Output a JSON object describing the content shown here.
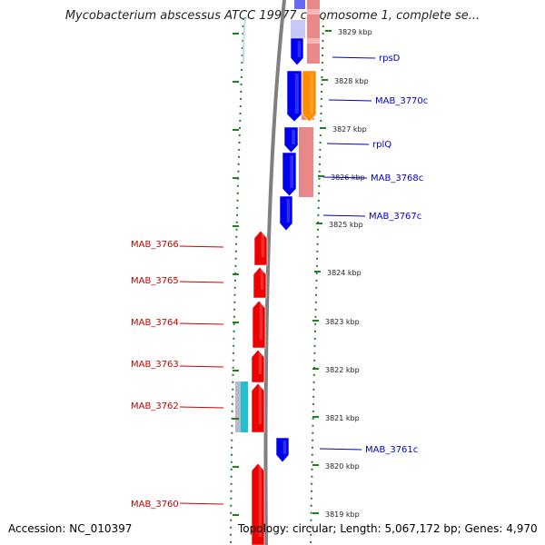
{
  "title": "Mycobacterium abscessus ATCC 19977 chromosome 1, complete se...",
  "footer": {
    "accession": "Accession: NC_010397",
    "topology": "Topology: circular; Length: 5,067,172 bp; Genes: 4,970"
  },
  "colors": {
    "forward_gene": "#ee0000",
    "reverse_gene": "#0000ee",
    "forward_label": "#cc0000",
    "reverse_label": "#0000cc",
    "highlight_gene": "#ff8c00",
    "rna_track": "#e88888",
    "tick": "#208020",
    "backbone": "#808080",
    "cyan_feature": "#20c0d0"
  },
  "ruler": {
    "unit": "kbp",
    "ticks": [
      "3829 kbp",
      "3828 kbp",
      "3827 kbp",
      "3826 kbp",
      "3825 kbp",
      "3824 kbp",
      "3823 kbp",
      "3822 kbp",
      "3821 kbp",
      "3820 kbp",
      "3819 kbp"
    ]
  },
  "forward_genes": [
    {
      "name": "MAB_3766"
    },
    {
      "name": "MAB_3765"
    },
    {
      "name": "MAB_3764"
    },
    {
      "name": "MAB_3763"
    },
    {
      "name": "MAB_3762"
    },
    {
      "name": "MAB_3760"
    }
  ],
  "reverse_genes": [
    {
      "name": "rpsD"
    },
    {
      "name": "MAB_3770c"
    },
    {
      "name": "rplQ"
    },
    {
      "name": "MAB_3768c"
    },
    {
      "name": "MAB_3767c"
    },
    {
      "name": "MAB_3761c"
    }
  ]
}
